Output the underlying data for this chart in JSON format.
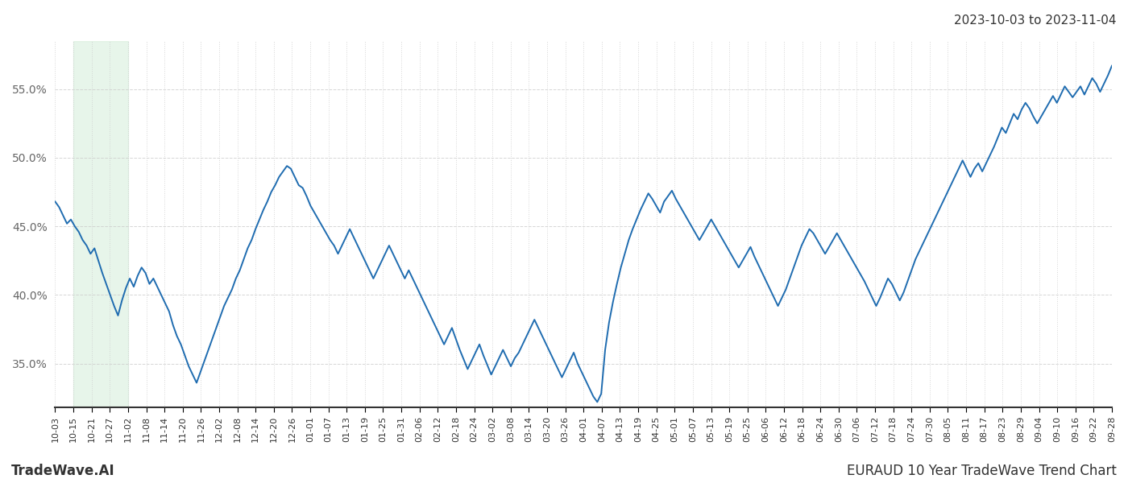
{
  "title_right": "2023-10-03 to 2023-11-04",
  "footer_left": "TradeWave.AI",
  "footer_right": "EURAUD 10 Year TradeWave Trend Chart",
  "line_color": "#1f6cb0",
  "line_width": 1.4,
  "shade_color": "#d4edda",
  "shade_alpha": 0.55,
  "background_color": "#ffffff",
  "grid_color": "#cccccc",
  "yticks": [
    0.35,
    0.4,
    0.45,
    0.5,
    0.55
  ],
  "ylim": [
    0.318,
    0.585
  ],
  "y_values": [
    0.468,
    0.464,
    0.458,
    0.452,
    0.455,
    0.45,
    0.446,
    0.44,
    0.436,
    0.43,
    0.434,
    0.425,
    0.416,
    0.408,
    0.4,
    0.392,
    0.385,
    0.396,
    0.405,
    0.412,
    0.406,
    0.414,
    0.42,
    0.416,
    0.408,
    0.412,
    0.406,
    0.4,
    0.394,
    0.388,
    0.378,
    0.37,
    0.364,
    0.356,
    0.348,
    0.342,
    0.336,
    0.344,
    0.352,
    0.36,
    0.368,
    0.376,
    0.384,
    0.392,
    0.398,
    0.404,
    0.412,
    0.418,
    0.426,
    0.434,
    0.44,
    0.448,
    0.455,
    0.462,
    0.468,
    0.475,
    0.48,
    0.486,
    0.49,
    0.494,
    0.492,
    0.486,
    0.48,
    0.478,
    0.472,
    0.465,
    0.46,
    0.455,
    0.45,
    0.445,
    0.44,
    0.436,
    0.43,
    0.436,
    0.442,
    0.448,
    0.442,
    0.436,
    0.43,
    0.424,
    0.418,
    0.412,
    0.418,
    0.424,
    0.43,
    0.436,
    0.43,
    0.424,
    0.418,
    0.412,
    0.418,
    0.412,
    0.406,
    0.4,
    0.394,
    0.388,
    0.382,
    0.376,
    0.37,
    0.364,
    0.37,
    0.376,
    0.368,
    0.36,
    0.353,
    0.346,
    0.352,
    0.358,
    0.364,
    0.356,
    0.349,
    0.342,
    0.348,
    0.354,
    0.36,
    0.354,
    0.348,
    0.354,
    0.358,
    0.364,
    0.37,
    0.376,
    0.382,
    0.376,
    0.37,
    0.364,
    0.358,
    0.352,
    0.346,
    0.34,
    0.346,
    0.352,
    0.358,
    0.35,
    0.344,
    0.338,
    0.332,
    0.326,
    0.322,
    0.328,
    0.36,
    0.38,
    0.395,
    0.408,
    0.42,
    0.43,
    0.44,
    0.448,
    0.455,
    0.462,
    0.468,
    0.474,
    0.47,
    0.465,
    0.46,
    0.468,
    0.472,
    0.476,
    0.47,
    0.465,
    0.46,
    0.455,
    0.45,
    0.445,
    0.44,
    0.445,
    0.45,
    0.455,
    0.45,
    0.445,
    0.44,
    0.435,
    0.43,
    0.425,
    0.42,
    0.425,
    0.43,
    0.435,
    0.428,
    0.422,
    0.416,
    0.41,
    0.404,
    0.398,
    0.392,
    0.398,
    0.404,
    0.412,
    0.42,
    0.428,
    0.436,
    0.442,
    0.448,
    0.445,
    0.44,
    0.435,
    0.43,
    0.435,
    0.44,
    0.445,
    0.44,
    0.435,
    0.43,
    0.425,
    0.42,
    0.415,
    0.41,
    0.404,
    0.398,
    0.392,
    0.398,
    0.405,
    0.412,
    0.408,
    0.402,
    0.396,
    0.402,
    0.41,
    0.418,
    0.426,
    0.432,
    0.438,
    0.444,
    0.45,
    0.456,
    0.462,
    0.468,
    0.474,
    0.48,
    0.486,
    0.492,
    0.498,
    0.492,
    0.486,
    0.492,
    0.496,
    0.49,
    0.496,
    0.502,
    0.508,
    0.515,
    0.522,
    0.518,
    0.525,
    0.532,
    0.528,
    0.535,
    0.54,
    0.536,
    0.53,
    0.525,
    0.53,
    0.535,
    0.54,
    0.545,
    0.54,
    0.546,
    0.552,
    0.548,
    0.544,
    0.548,
    0.552,
    0.546,
    0.552,
    0.558,
    0.554,
    0.548,
    0.554,
    0.56,
    0.567
  ],
  "x_labels": [
    "10-03",
    "10-15",
    "10-21",
    "10-27",
    "11-02",
    "11-08",
    "11-14",
    "11-20",
    "11-26",
    "12-02",
    "12-08",
    "12-14",
    "12-20",
    "12-26",
    "01-01",
    "01-07",
    "01-13",
    "01-19",
    "01-25",
    "01-31",
    "02-06",
    "02-12",
    "02-18",
    "02-24",
    "03-02",
    "03-08",
    "03-14",
    "03-20",
    "03-26",
    "04-01",
    "04-07",
    "04-13",
    "04-19",
    "04-25",
    "05-01",
    "05-07",
    "05-13",
    "05-19",
    "05-25",
    "06-06",
    "06-12",
    "06-18",
    "06-24",
    "06-30",
    "07-06",
    "07-12",
    "07-18",
    "07-24",
    "07-30",
    "08-05",
    "08-11",
    "08-17",
    "08-23",
    "08-29",
    "09-04",
    "09-10",
    "09-16",
    "09-22",
    "09-28"
  ],
  "shade_start_label": "10-15",
  "shade_end_label": "11-02",
  "title_fontsize": 11,
  "footer_fontsize": 12,
  "tick_fontsize": 8,
  "ytick_fontsize": 10
}
